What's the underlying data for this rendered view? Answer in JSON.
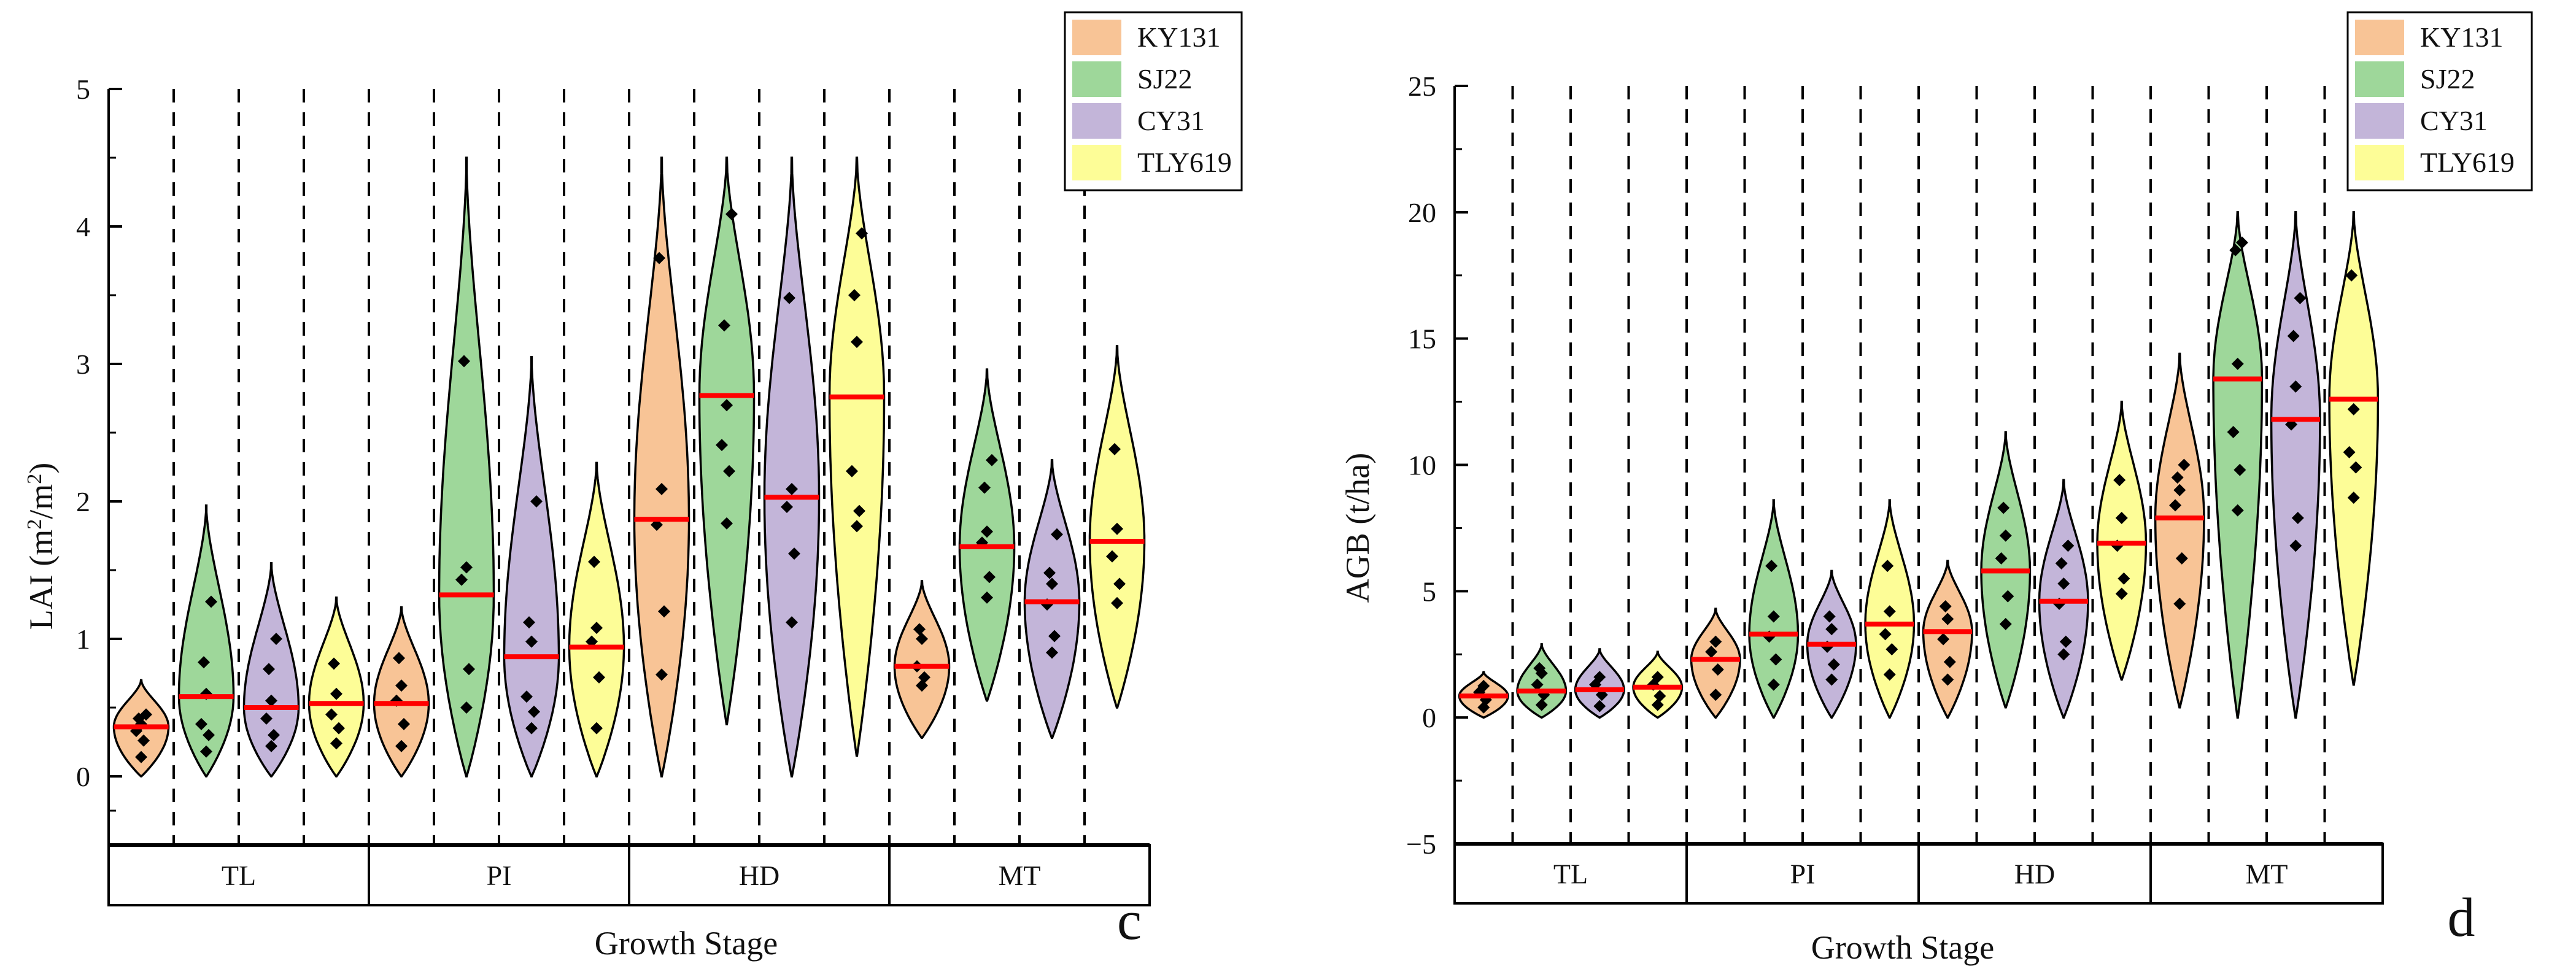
{
  "colors": {
    "KY131": "#f8c496",
    "SJ22": "#9ed79a",
    "CY31": "#c3b5d9",
    "TLY619": "#fdfd97",
    "median": "#ff0000",
    "axis": "#000000",
    "point": "#000000"
  },
  "chart_data": [
    {
      "type": "violin",
      "panel_label": "c",
      "xlabel": "Growth Stage",
      "ylabel": "LAI (m²/m²)",
      "ylabel_parts": {
        "main": "LAI (m",
        "sup1": "2",
        "mid": "/m",
        "sup2": "2",
        "end": ")"
      },
      "ylim": [
        -0.5,
        5
      ],
      "yticks": [
        0,
        1,
        2,
        3,
        4,
        5
      ],
      "y_tick_labels": [
        "0",
        "1",
        "2",
        "3",
        "4",
        "5"
      ],
      "stages": [
        "TL",
        "PI",
        "HD",
        "MT"
      ],
      "legend": [
        "KY131",
        "SJ22",
        "CY31",
        "TLY619"
      ],
      "legend_position": "top-right",
      "violins": [
        {
          "stage": "TL",
          "cultivar": "KY131",
          "min": 0.0,
          "max": 0.7,
          "median": 0.36,
          "points": [
            0.14,
            0.26,
            0.33,
            0.38,
            0.42,
            0.45
          ]
        },
        {
          "stage": "TL",
          "cultivar": "SJ22",
          "min": 0.0,
          "max": 1.97,
          "median": 0.58,
          "points": [
            0.18,
            0.3,
            0.38,
            0.6,
            0.83,
            1.27
          ]
        },
        {
          "stage": "TL",
          "cultivar": "CY31",
          "min": 0.0,
          "max": 1.55,
          "median": 0.5,
          "points": [
            0.22,
            0.3,
            0.42,
            0.55,
            0.78,
            1.0
          ]
        },
        {
          "stage": "TL",
          "cultivar": "TLY619",
          "min": 0.0,
          "max": 1.3,
          "median": 0.53,
          "points": [
            0.24,
            0.35,
            0.45,
            0.6,
            0.82
          ]
        },
        {
          "stage": "PI",
          "cultivar": "KY131",
          "min": 0.0,
          "max": 1.23,
          "median": 0.53,
          "points": [
            0.22,
            0.38,
            0.55,
            0.66,
            0.86
          ]
        },
        {
          "stage": "PI",
          "cultivar": "SJ22",
          "min": 0.0,
          "max": 4.5,
          "median": 1.32,
          "points": [
            0.5,
            0.78,
            1.43,
            1.52,
            3.02
          ]
        },
        {
          "stage": "PI",
          "cultivar": "CY31",
          "min": 0.0,
          "max": 3.05,
          "median": 0.87,
          "points": [
            0.35,
            0.47,
            0.58,
            0.98,
            1.12,
            2.0
          ]
        },
        {
          "stage": "PI",
          "cultivar": "TLY619",
          "min": 0.0,
          "max": 2.28,
          "median": 0.94,
          "points": [
            0.35,
            0.72,
            0.98,
            1.08,
            1.56
          ]
        },
        {
          "stage": "HD",
          "cultivar": "KY131",
          "min": 0.0,
          "max": 4.5,
          "median": 1.87,
          "points": [
            0.74,
            1.2,
            1.83,
            2.09,
            3.77
          ]
        },
        {
          "stage": "HD",
          "cultivar": "SJ22",
          "min": 0.38,
          "max": 4.5,
          "median": 2.77,
          "points": [
            1.84,
            2.22,
            2.41,
            2.7,
            3.28,
            4.09
          ]
        },
        {
          "stage": "HD",
          "cultivar": "CY31",
          "min": 0.0,
          "max": 4.5,
          "median": 2.03,
          "points": [
            1.12,
            1.62,
            1.96,
            2.09,
            3.48
          ]
        },
        {
          "stage": "HD",
          "cultivar": "TLY619",
          "min": 0.15,
          "max": 4.5,
          "median": 2.76,
          "points": [
            1.82,
            1.93,
            2.22,
            3.16,
            3.5,
            3.95
          ]
        },
        {
          "stage": "MT",
          "cultivar": "KY131",
          "min": 0.28,
          "max": 1.42,
          "median": 0.8,
          "points": [
            0.66,
            0.72,
            0.8,
            1.0,
            1.07
          ]
        },
        {
          "stage": "MT",
          "cultivar": "SJ22",
          "min": 0.55,
          "max": 2.96,
          "median": 1.67,
          "points": [
            1.3,
            1.45,
            1.7,
            1.78,
            2.1,
            2.3
          ]
        },
        {
          "stage": "MT",
          "cultivar": "CY31",
          "min": 0.28,
          "max": 2.3,
          "median": 1.27,
          "points": [
            0.9,
            1.02,
            1.25,
            1.4,
            1.48,
            1.76
          ]
        },
        {
          "stage": "MT",
          "cultivar": "TLY619",
          "min": 0.5,
          "max": 3.13,
          "median": 1.71,
          "points": [
            1.26,
            1.4,
            1.6,
            1.8,
            2.38
          ]
        }
      ]
    },
    {
      "type": "violin",
      "panel_label": "d",
      "xlabel": "Growth Stage",
      "ylabel": "AGB (t/ha)",
      "ylim": [
        -5,
        25
      ],
      "yticks": [
        -5,
        0,
        5,
        10,
        15,
        20,
        25
      ],
      "y_tick_labels": [
        "−5",
        "0",
        "5",
        "10",
        "15",
        "20",
        "25"
      ],
      "stages": [
        "TL",
        "PI",
        "HD",
        "MT"
      ],
      "legend": [
        "KY131",
        "SJ22",
        "CY31",
        "TLY619"
      ],
      "legend_position": "top-right",
      "violins": [
        {
          "stage": "TL",
          "cultivar": "KY131",
          "min": 0.0,
          "max": 1.8,
          "median": 0.85,
          "points": [
            0.4,
            0.7,
            1.0,
            1.25
          ]
        },
        {
          "stage": "TL",
          "cultivar": "SJ22",
          "min": 0.0,
          "max": 2.9,
          "median": 1.05,
          "points": [
            0.5,
            0.9,
            1.3,
            1.75,
            1.95
          ]
        },
        {
          "stage": "TL",
          "cultivar": "CY31",
          "min": 0.0,
          "max": 2.7,
          "median": 1.1,
          "points": [
            0.45,
            0.9,
            1.3,
            1.6
          ]
        },
        {
          "stage": "TL",
          "cultivar": "TLY619",
          "min": 0.0,
          "max": 2.6,
          "median": 1.2,
          "points": [
            0.5,
            0.85,
            1.3,
            1.6
          ]
        },
        {
          "stage": "PI",
          "cultivar": "KY131",
          "min": 0.0,
          "max": 4.3,
          "median": 2.3,
          "points": [
            0.9,
            1.9,
            2.6,
            3.0
          ]
        },
        {
          "stage": "PI",
          "cultivar": "SJ22",
          "min": 0.0,
          "max": 8.6,
          "median": 3.3,
          "points": [
            1.3,
            2.3,
            3.2,
            4.0,
            6.0
          ]
        },
        {
          "stage": "PI",
          "cultivar": "CY31",
          "min": 0.0,
          "max": 5.8,
          "median": 2.9,
          "points": [
            1.5,
            2.1,
            2.8,
            3.5,
            4.0
          ]
        },
        {
          "stage": "PI",
          "cultivar": "TLY619",
          "min": 0.0,
          "max": 8.6,
          "median": 3.7,
          "points": [
            1.7,
            2.7,
            3.3,
            4.2,
            6.0
          ]
        },
        {
          "stage": "HD",
          "cultivar": "KY131",
          "min": 0.0,
          "max": 6.2,
          "median": 3.4,
          "points": [
            1.5,
            2.2,
            3.1,
            3.9,
            4.4
          ]
        },
        {
          "stage": "HD",
          "cultivar": "SJ22",
          "min": 0.4,
          "max": 11.3,
          "median": 5.8,
          "points": [
            3.7,
            4.8,
            6.3,
            7.2,
            8.3
          ]
        },
        {
          "stage": "HD",
          "cultivar": "CY31",
          "min": 0.0,
          "max": 9.4,
          "median": 4.6,
          "points": [
            2.5,
            3.0,
            4.5,
            5.3,
            6.1,
            6.8
          ]
        },
        {
          "stage": "HD",
          "cultivar": "TLY619",
          "min": 1.5,
          "max": 12.5,
          "median": 6.9,
          "points": [
            4.9,
            5.5,
            6.8,
            7.9,
            9.4
          ]
        },
        {
          "stage": "MT",
          "cultivar": "KY131",
          "min": 0.4,
          "max": 14.4,
          "median": 7.9,
          "points": [
            4.5,
            6.3,
            8.4,
            9.0,
            9.5,
            10.0
          ]
        },
        {
          "stage": "MT",
          "cultivar": "SJ22",
          "min": 0.0,
          "max": 20.0,
          "median": 13.4,
          "points": [
            8.2,
            9.8,
            11.3,
            14.0,
            18.5,
            18.8
          ]
        },
        {
          "stage": "MT",
          "cultivar": "CY31",
          "min": 0.0,
          "max": 20.0,
          "median": 11.8,
          "points": [
            6.8,
            7.9,
            11.6,
            13.1,
            15.1,
            16.6
          ]
        },
        {
          "stage": "MT",
          "cultivar": "TLY619",
          "min": 1.3,
          "max": 20.0,
          "median": 12.6,
          "points": [
            8.7,
            9.9,
            10.5,
            12.2,
            17.5
          ]
        }
      ]
    }
  ]
}
